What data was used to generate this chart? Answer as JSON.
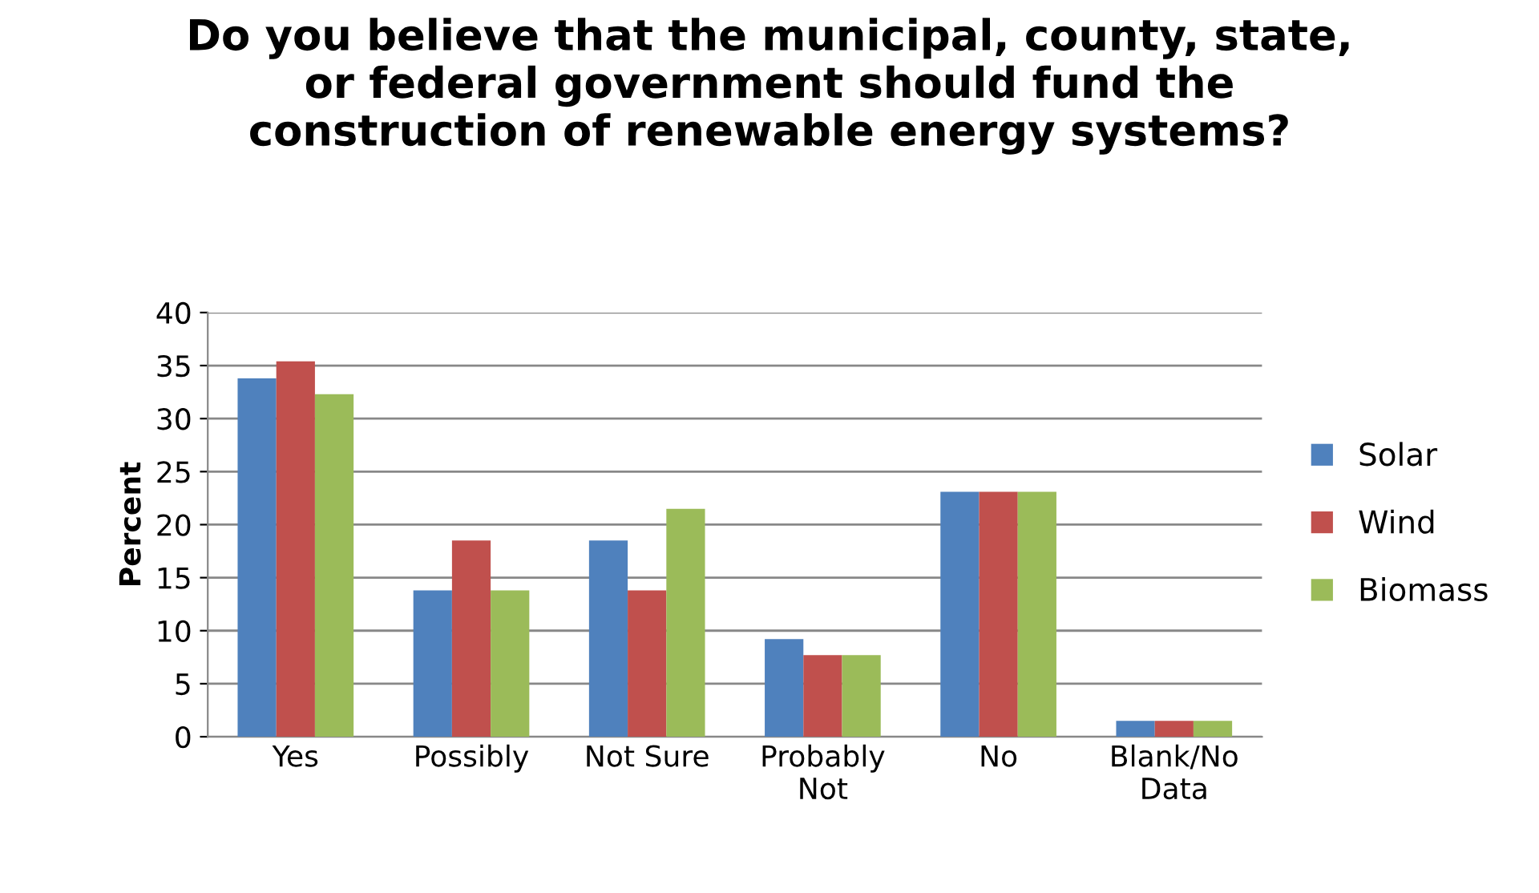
{
  "chart_data": {
    "type": "bar",
    "title": "Do you believe that the municipal, county, state,\nor federal government should fund the\nconstruction of renewable energy systems?",
    "ylabel": "Percent",
    "categories": [
      "Yes",
      "Possibly",
      "Not Sure",
      "Probably\nNot",
      "No",
      "Blank/No\nData"
    ],
    "series": [
      {
        "name": "Solar",
        "color": "#4f81bd",
        "values": [
          33.8,
          13.8,
          18.5,
          9.2,
          23.1,
          1.5
        ]
      },
      {
        "name": "Wind",
        "color": "#c0504d",
        "values": [
          35.4,
          18.5,
          13.8,
          7.7,
          23.1,
          1.5
        ]
      },
      {
        "name": "Biomass",
        "color": "#9bbb59",
        "values": [
          32.3,
          13.8,
          21.5,
          7.7,
          23.1,
          1.5
        ]
      }
    ],
    "ylim": [
      0,
      40
    ],
    "yticks": [
      0,
      5,
      10,
      15,
      20,
      25,
      30,
      35,
      40
    ],
    "grid": "y",
    "legend": "right"
  }
}
